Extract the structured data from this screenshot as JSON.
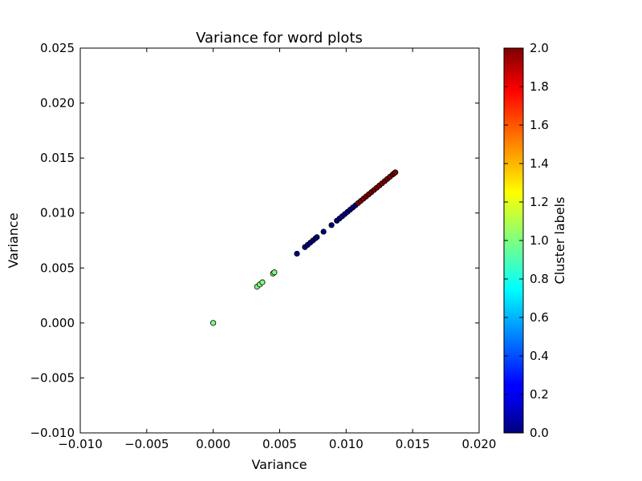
{
  "chart_data": {
    "type": "scatter",
    "title": "Variance for word plots",
    "xlabel": "Variance",
    "ylabel": "Variance",
    "xlim": [
      -0.01,
      0.02
    ],
    "ylim": [
      -0.01,
      0.025
    ],
    "xticks": [
      -0.01,
      -0.005,
      0.0,
      0.005,
      0.01,
      0.015,
      0.02
    ],
    "xtick_labels": [
      "−0.010",
      "−0.005",
      "0.000",
      "0.005",
      "0.010",
      "0.015",
      "0.020"
    ],
    "yticks": [
      -0.01,
      -0.005,
      0.0,
      0.005,
      0.01,
      0.015,
      0.02,
      0.025
    ],
    "ytick_labels": [
      "−0.010",
      "−0.005",
      "0.000",
      "0.005",
      "0.010",
      "0.015",
      "0.020",
      "0.025"
    ],
    "grid": false,
    "colorbar": {
      "label": "Cluster labels",
      "range": [
        0.0,
        2.0
      ],
      "ticks": [
        0.0,
        0.2,
        0.4,
        0.6,
        0.8,
        1.0,
        1.2,
        1.4,
        1.6,
        1.8,
        2.0
      ],
      "tick_labels": [
        "0.0",
        "0.2",
        "0.4",
        "0.6",
        "0.8",
        "1.0",
        "1.2",
        "1.4",
        "1.6",
        "1.8",
        "2.0"
      ],
      "colormap": "jet"
    },
    "points": [
      {
        "x": 0.0,
        "y": 0.0,
        "c": 1
      },
      {
        "x": 0.0033,
        "y": 0.0033,
        "c": 1
      },
      {
        "x": 0.0035,
        "y": 0.0035,
        "c": 1
      },
      {
        "x": 0.0037,
        "y": 0.0037,
        "c": 1
      },
      {
        "x": 0.0045,
        "y": 0.0045,
        "c": 1
      },
      {
        "x": 0.0046,
        "y": 0.0046,
        "c": 1
      },
      {
        "x": 0.0063,
        "y": 0.0063,
        "c": 0
      },
      {
        "x": 0.0069,
        "y": 0.0069,
        "c": 0
      },
      {
        "x": 0.0071,
        "y": 0.0071,
        "c": 0
      },
      {
        "x": 0.0073,
        "y": 0.0073,
        "c": 0
      },
      {
        "x": 0.0075,
        "y": 0.0075,
        "c": 0
      },
      {
        "x": 0.0077,
        "y": 0.0077,
        "c": 0
      },
      {
        "x": 0.0078,
        "y": 0.0078,
        "c": 0
      },
      {
        "x": 0.0083,
        "y": 0.0083,
        "c": 0
      },
      {
        "x": 0.0089,
        "y": 0.0089,
        "c": 0
      },
      {
        "x": 0.0093,
        "y": 0.0093,
        "c": 0
      },
      {
        "x": 0.0095,
        "y": 0.0095,
        "c": 0
      },
      {
        "x": 0.0097,
        "y": 0.0097,
        "c": 0
      },
      {
        "x": 0.0099,
        "y": 0.0099,
        "c": 0
      },
      {
        "x": 0.0101,
        "y": 0.0101,
        "c": 0
      },
      {
        "x": 0.0103,
        "y": 0.0103,
        "c": 0
      },
      {
        "x": 0.0105,
        "y": 0.0105,
        "c": 0
      },
      {
        "x": 0.0107,
        "y": 0.0107,
        "c": 0
      },
      {
        "x": 0.0109,
        "y": 0.0109,
        "c": 2
      },
      {
        "x": 0.0111,
        "y": 0.0111,
        "c": 2
      },
      {
        "x": 0.0113,
        "y": 0.0113,
        "c": 2
      },
      {
        "x": 0.0115,
        "y": 0.0115,
        "c": 2
      },
      {
        "x": 0.0117,
        "y": 0.0117,
        "c": 2
      },
      {
        "x": 0.0119,
        "y": 0.0119,
        "c": 2
      },
      {
        "x": 0.0121,
        "y": 0.0121,
        "c": 2
      },
      {
        "x": 0.0123,
        "y": 0.0123,
        "c": 2
      },
      {
        "x": 0.0125,
        "y": 0.0125,
        "c": 2
      },
      {
        "x": 0.0127,
        "y": 0.0127,
        "c": 2
      },
      {
        "x": 0.0129,
        "y": 0.0129,
        "c": 2
      },
      {
        "x": 0.0131,
        "y": 0.0131,
        "c": 2
      },
      {
        "x": 0.0133,
        "y": 0.0133,
        "c": 2
      },
      {
        "x": 0.0135,
        "y": 0.0135,
        "c": 2
      },
      {
        "x": 0.0136,
        "y": 0.0136,
        "c": 2
      },
      {
        "x": 0.0137,
        "y": 0.0137,
        "c": 2
      }
    ]
  }
}
